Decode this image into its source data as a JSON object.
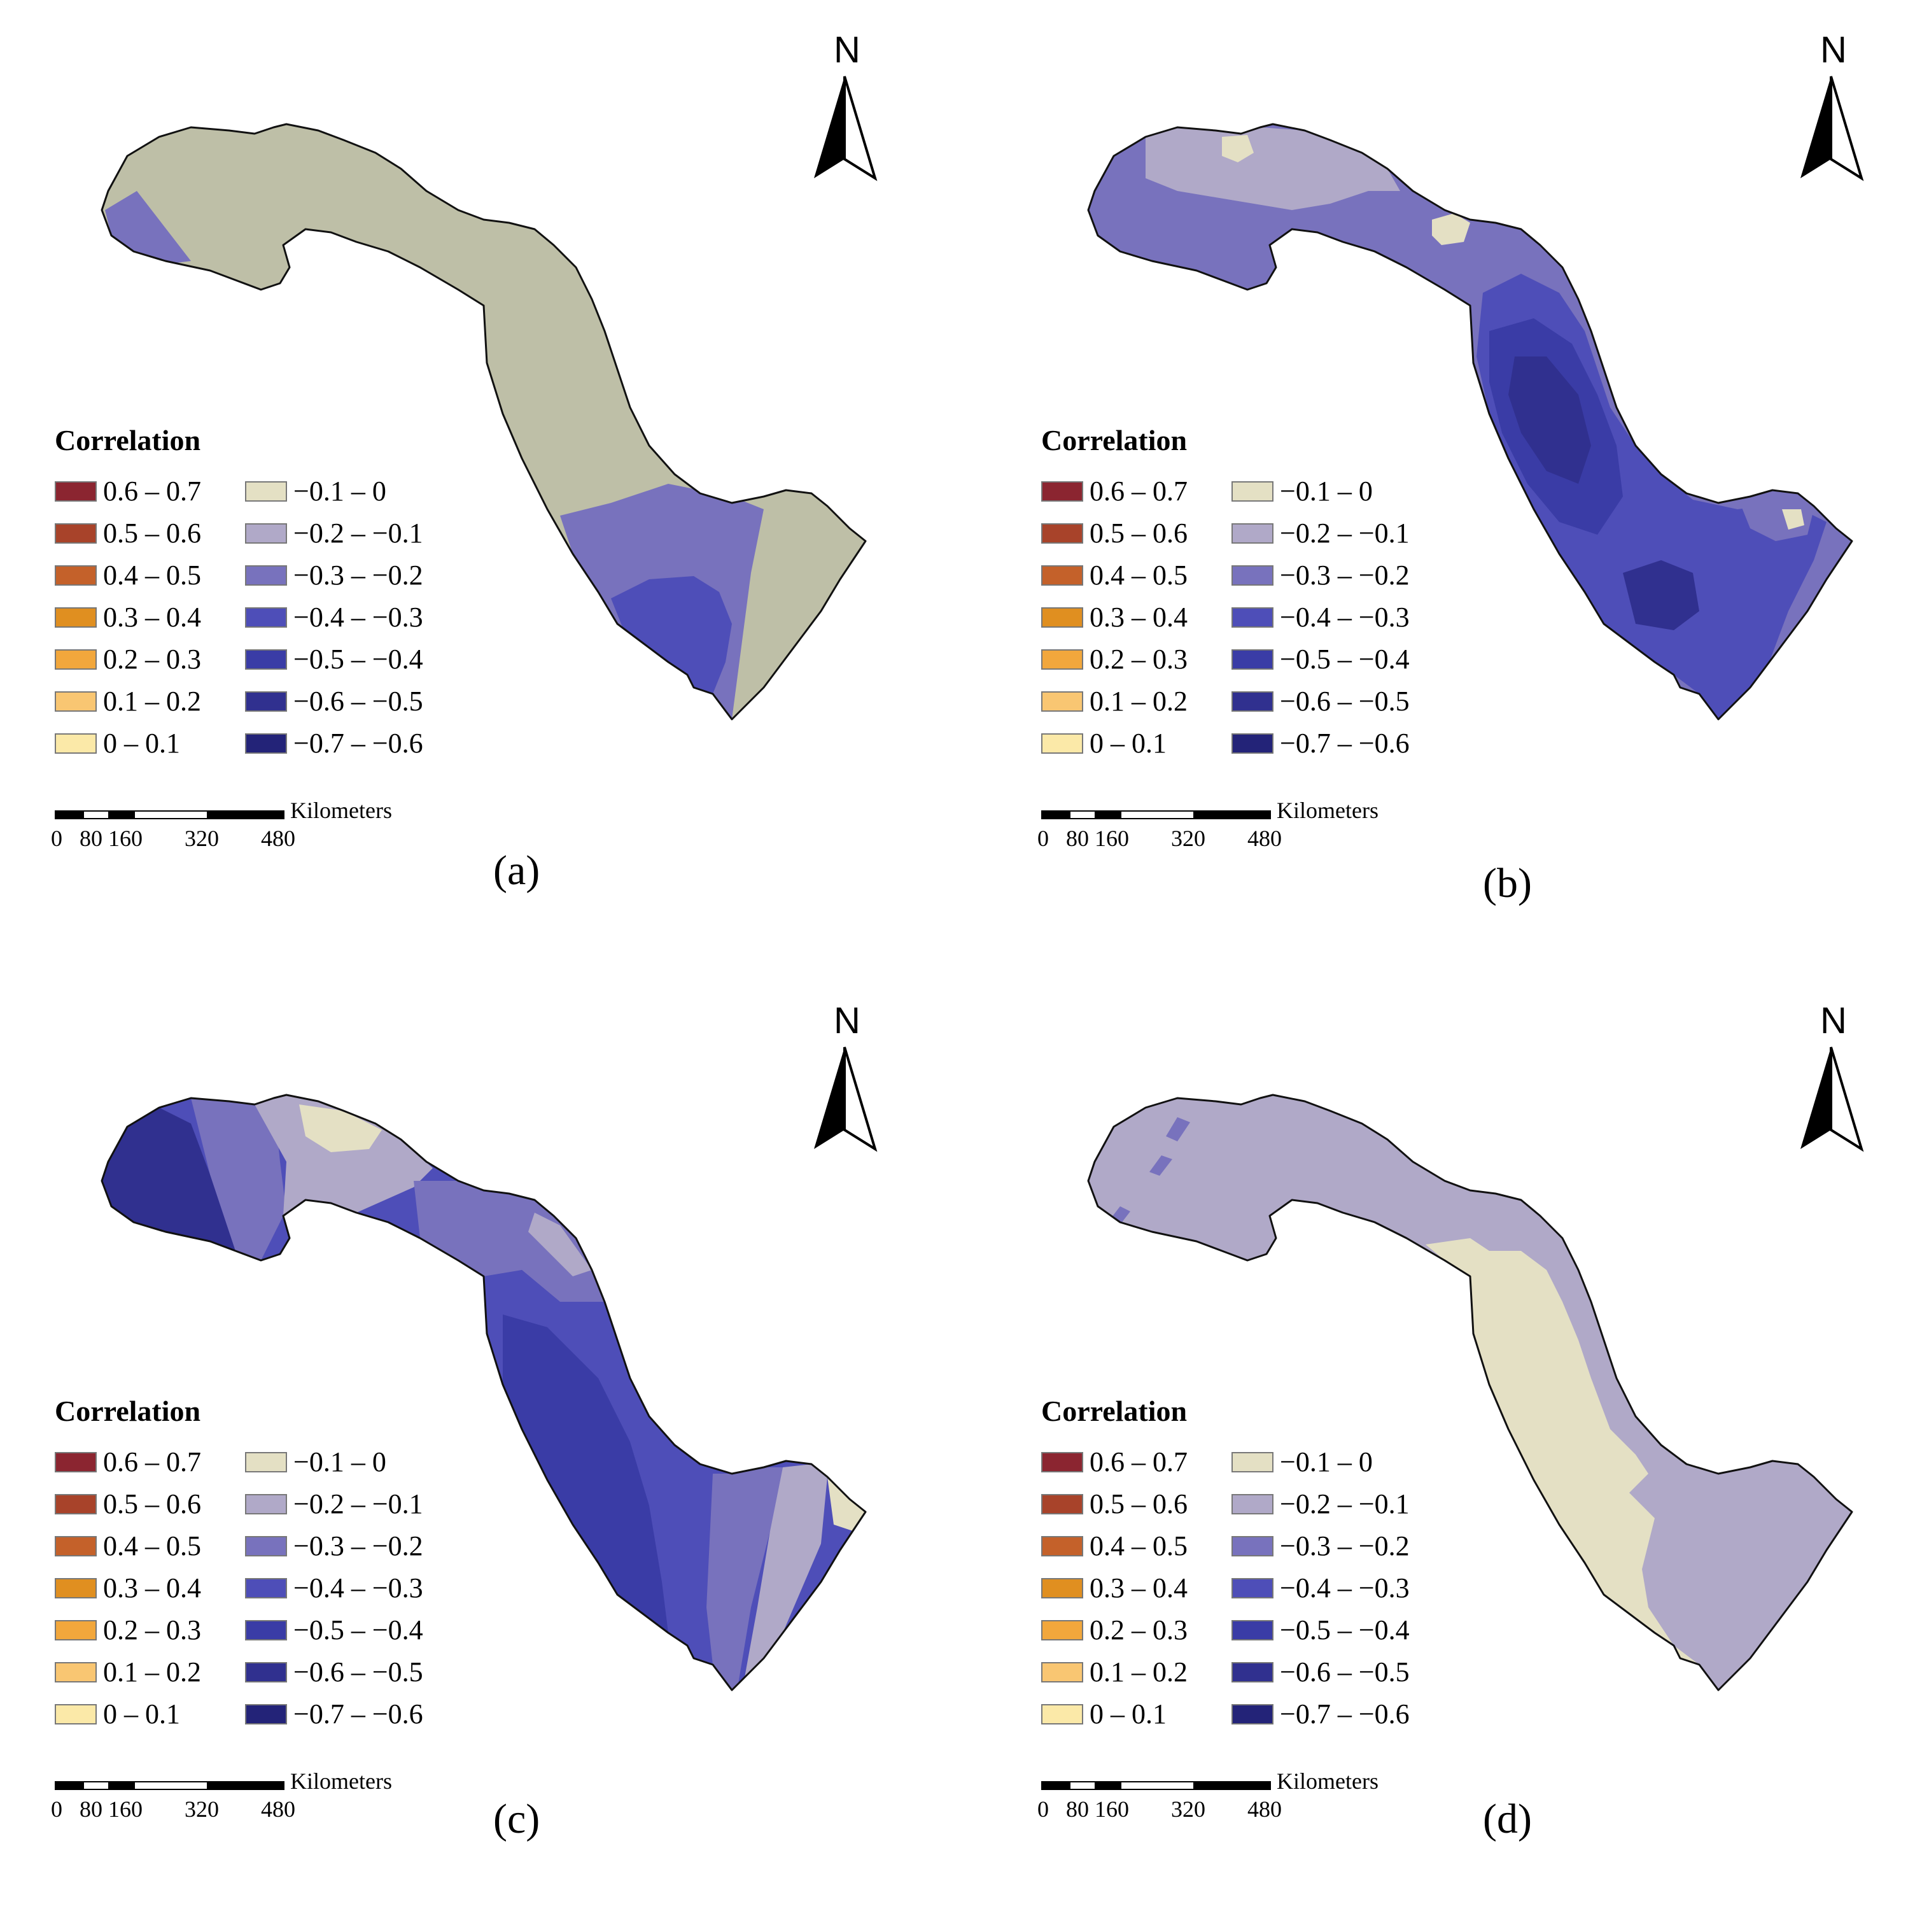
{
  "legend": {
    "title": "Correlation",
    "left_items": [
      {
        "label": "0.6 – 0.7",
        "color": "#8B2530"
      },
      {
        "label": "0.5 – 0.6",
        "color": "#A8432A"
      },
      {
        "label": "0.4 – 0.5",
        "color": "#C4612A"
      },
      {
        "label": "0.3 – 0.4",
        "color": "#E08F20"
      },
      {
        "label": "0.2 – 0.3",
        "color": "#F2A73C"
      },
      {
        "label": "0.1 – 0.2",
        "color": "#F9C672"
      },
      {
        "label": "0 – 0.1",
        "color": "#FBE9A8"
      }
    ],
    "right_items": [
      {
        "label": "−0.1 – 0",
        "color": "#E4E0C4"
      },
      {
        "label": "−0.2 – −0.1",
        "color": "#B0A9C8"
      },
      {
        "label": "−0.3 – −0.2",
        "color": "#7872BD"
      },
      {
        "label": "−0.4 – −0.3",
        "color": "#4E4EB8"
      },
      {
        "label": "−0.5 – −0.4",
        "color": "#3A3CA6"
      },
      {
        "label": "−0.6 – −0.5",
        "color": "#30308F"
      },
      {
        "label": "−0.7 – −0.6",
        "color": "#232378"
      }
    ]
  },
  "scalebar": {
    "units": "Kilometers",
    "ticks": [
      "0",
      "80",
      "160",
      "320",
      "480"
    ]
  },
  "north_arrow": {
    "letter": "N",
    "icon": "north-arrow-icon"
  },
  "panels": [
    {
      "id": "a",
      "label": "(a)",
      "base_color": "#BEBFA7"
    },
    {
      "id": "b",
      "label": "(b)",
      "base_color": "#7872BD"
    },
    {
      "id": "c",
      "label": "(c)",
      "base_color": "#4E4EB8"
    },
    {
      "id": "d",
      "label": "(d)",
      "base_color": "#B0A9C8"
    }
  ]
}
